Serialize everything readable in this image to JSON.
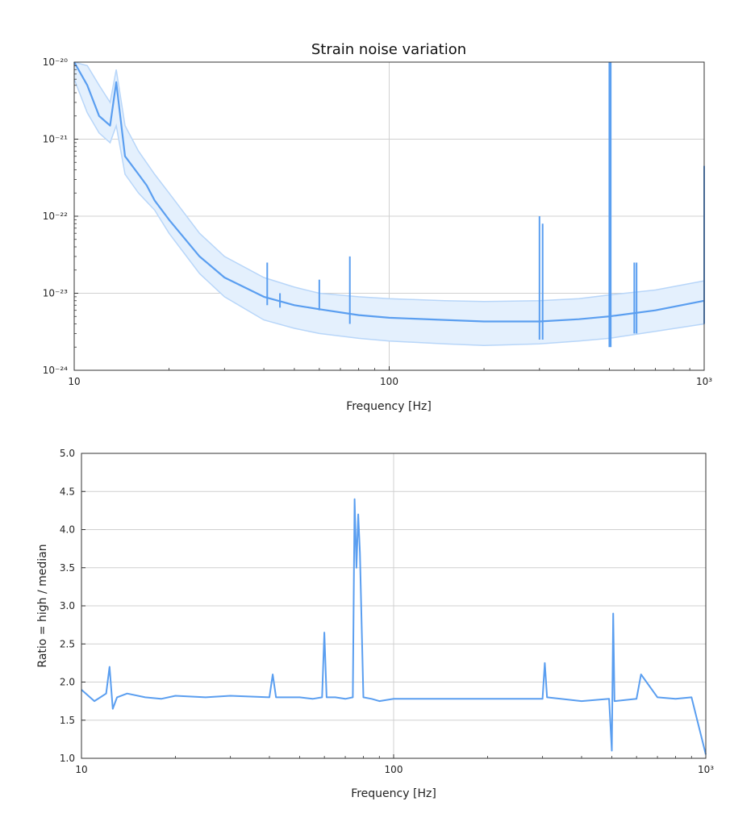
{
  "chart_data": [
    {
      "type": "line",
      "title": "Strain noise variation",
      "xlabel": "Frequency [Hz]",
      "ylabel": "",
      "xscale": "log",
      "yscale": "log",
      "xlim": [
        10,
        1000
      ],
      "ylim": [
        1e-24,
        1e-20
      ],
      "grid": true,
      "x_ticks": [
        {
          "v": 10,
          "label": "10"
        },
        {
          "v": 100,
          "label": "100"
        },
        {
          "v": 1000,
          "label": "10³"
        }
      ],
      "y_ticks": [
        {
          "v": 1e-24,
          "label": "10⁻²⁴"
        },
        {
          "v": 1e-23,
          "label": "10⁻²³"
        },
        {
          "v": 1e-22,
          "label": "10⁻²²"
        },
        {
          "v": 1e-21,
          "label": "10⁻²¹"
        },
        {
          "v": 1e-20,
          "label": "10⁻²⁰"
        }
      ],
      "colors": {
        "median": "#5a9ef0",
        "band_fill": "#e4f0fd",
        "band_edge": "#b8d6f9"
      },
      "series": [
        {
          "role": "median",
          "x": [
            10,
            11,
            12,
            13,
            13.6,
            14.5,
            16,
            17,
            18,
            20,
            25,
            30,
            40,
            50,
            60,
            80,
            100,
            150,
            200,
            300,
            400,
            500,
            700,
            1000
          ],
          "y": [
            1e-20,
            5e-21,
            2e-21,
            1.5e-21,
            5.5e-21,
            6e-22,
            3.5e-22,
            2.5e-22,
            1.6e-22,
            9e-23,
            3e-23,
            1.6e-23,
            9e-24,
            7e-24,
            6.2e-24,
            5.2e-24,
            4.8e-24,
            4.5e-24,
            4.3e-24,
            4.3e-24,
            4.6e-24,
            5e-24,
            6e-24,
            8e-24
          ]
        },
        {
          "role": "band_upper",
          "x": [
            10,
            11,
            12,
            13,
            13.6,
            14.5,
            16,
            18,
            20,
            25,
            30,
            40,
            50,
            60,
            80,
            100,
            150,
            200,
            300,
            400,
            500,
            700,
            1000
          ],
          "y": [
            1e-20,
            9e-21,
            5e-21,
            3e-21,
            8e-21,
            1.5e-21,
            7e-22,
            3.5e-22,
            2e-22,
            6e-23,
            3e-23,
            1.6e-23,
            1.2e-23,
            1e-23,
            9e-24,
            8.5e-24,
            8e-24,
            7.8e-24,
            8e-24,
            8.5e-24,
            9.5e-24,
            1.1e-23,
            1.45e-23
          ]
        },
        {
          "role": "band_lower",
          "x": [
            10,
            11,
            12,
            13,
            13.6,
            14.5,
            16,
            18,
            20,
            25,
            30,
            40,
            50,
            60,
            80,
            100,
            150,
            200,
            300,
            400,
            500,
            700,
            1000
          ],
          "y": [
            6e-21,
            2.2e-21,
            1.2e-21,
            9e-22,
            1.5e-21,
            3.5e-22,
            2e-22,
            1.2e-22,
            6e-23,
            1.8e-23,
            9e-24,
            4.5e-24,
            3.5e-24,
            3e-24,
            2.6e-24,
            2.4e-24,
            2.2e-24,
            2.1e-24,
            2.2e-24,
            2.4e-24,
            2.6e-24,
            3.2e-24,
            4e-24
          ]
        }
      ],
      "lines": [
        {
          "x": 41,
          "y_low": 7e-24,
          "y_high": 2.5e-23
        },
        {
          "x": 45,
          "y_low": 6.5e-24,
          "y_high": 1e-23
        },
        {
          "x": 60,
          "y_low": 6e-24,
          "y_high": 1.5e-23
        },
        {
          "x": 75,
          "y_low": 4e-24,
          "y_high": 3e-23
        },
        {
          "x": 300,
          "y_low": 2.5e-24,
          "y_high": 1e-22
        },
        {
          "x": 307,
          "y_low": 2.5e-24,
          "y_high": 8e-23
        },
        {
          "x": 500,
          "y_low": 2e-24,
          "y_high": 1e-20
        },
        {
          "x": 505,
          "y_low": 2e-24,
          "y_high": 1e-20
        },
        {
          "x": 600,
          "y_low": 3e-24,
          "y_high": 2.5e-23
        },
        {
          "x": 610,
          "y_low": 3e-24,
          "y_high": 2.5e-23
        },
        {
          "x": 1000,
          "y_low": 4e-24,
          "y_high": 4.5e-22
        }
      ]
    },
    {
      "type": "line",
      "title": "",
      "xlabel": "Frequency [Hz]",
      "ylabel": "Ratio = high / median",
      "xscale": "log",
      "yscale": "linear",
      "xlim": [
        10,
        1000
      ],
      "ylim": [
        1.0,
        5.0
      ],
      "grid": true,
      "x_ticks": [
        {
          "v": 10,
          "label": "10"
        },
        {
          "v": 100,
          "label": "100"
        },
        {
          "v": 1000,
          "label": "10³"
        }
      ],
      "y_ticks": [
        {
          "v": 1.0,
          "label": "1.0"
        },
        {
          "v": 1.5,
          "label": "1.5"
        },
        {
          "v": 2.0,
          "label": "2.0"
        },
        {
          "v": 2.5,
          "label": "2.5"
        },
        {
          "v": 3.0,
          "label": "3.0"
        },
        {
          "v": 3.5,
          "label": "3.5"
        },
        {
          "v": 4.0,
          "label": "4.0"
        },
        {
          "v": 4.5,
          "label": "4.5"
        },
        {
          "v": 5.0,
          "label": "5.0"
        }
      ],
      "colors": {
        "line": "#5a9ef0"
      },
      "series": [
        {
          "role": "ratio",
          "x": [
            10,
            11,
            12,
            12.3,
            12.6,
            13,
            14,
            16,
            18,
            20,
            25,
            30,
            40,
            41,
            42,
            50,
            55,
            59,
            60,
            61,
            65,
            70,
            74,
            75,
            76,
            77,
            78,
            80,
            85,
            90,
            100,
            150,
            200,
            300,
            305,
            310,
            400,
            490,
            500,
            505,
            510,
            600,
            620,
            700,
            800,
            900,
            1000
          ],
          "y": [
            1.9,
            1.75,
            1.85,
            2.2,
            1.65,
            1.8,
            1.85,
            1.8,
            1.78,
            1.82,
            1.8,
            1.82,
            1.8,
            2.1,
            1.8,
            1.8,
            1.78,
            1.8,
            2.65,
            1.8,
            1.8,
            1.78,
            1.8,
            4.4,
            3.5,
            4.2,
            3.7,
            1.8,
            1.78,
            1.75,
            1.78,
            1.78,
            1.78,
            1.78,
            2.25,
            1.8,
            1.75,
            1.78,
            1.1,
            2.9,
            1.75,
            1.78,
            2.1,
            1.8,
            1.78,
            1.8,
            1.05
          ]
        }
      ]
    }
  ]
}
